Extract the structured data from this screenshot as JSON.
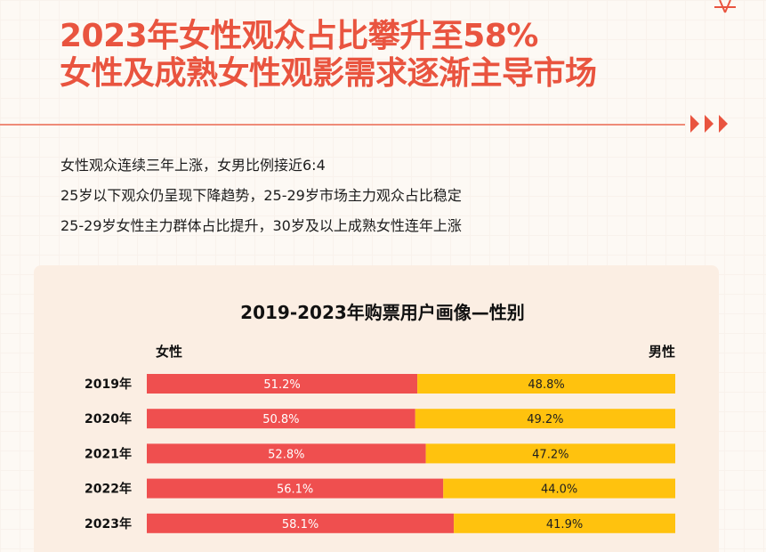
{
  "header": {
    "title_line1": "2023年女性观众占比攀升至58%",
    "title_line2": "女性及成熟女性观影需求逐渐主导市场",
    "arrow_icon": "triple-chevron-right-icon",
    "accent_color": "#e9543f"
  },
  "bullets": [
    "女性观众连续三年上涨，女男比例接近6:4",
    "25岁以下观众仍呈现下降趋势，25-29岁市场主力观众占比稳定",
    "25-29岁女性主力群体占比提升，30岁及以上成熟女性连年上涨"
  ],
  "chart_data": {
    "type": "bar",
    "orientation": "horizontal-stacked-100",
    "title": "2019-2023年购票用户画像—性别",
    "categories": [
      "2019年",
      "2020年",
      "2021年",
      "2022年",
      "2023年"
    ],
    "series": [
      {
        "name": "女性",
        "color": "#ef4f4f",
        "values": [
          51.2,
          50.8,
          52.8,
          56.1,
          58.1
        ],
        "labels": [
          "51.2%",
          "50.8%",
          "52.8%",
          "56.1%",
          "58.1%"
        ]
      },
      {
        "name": "男性",
        "color": "#ffc20e",
        "values": [
          48.8,
          49.2,
          47.2,
          44.0,
          41.9
        ],
        "labels": [
          "48.8%",
          "49.2%",
          "47.2%",
          "44.0%",
          "41.9%"
        ]
      }
    ],
    "xlim": [
      0,
      100
    ],
    "legend_left": "女性",
    "legend_right": "男性",
    "grid": false
  }
}
